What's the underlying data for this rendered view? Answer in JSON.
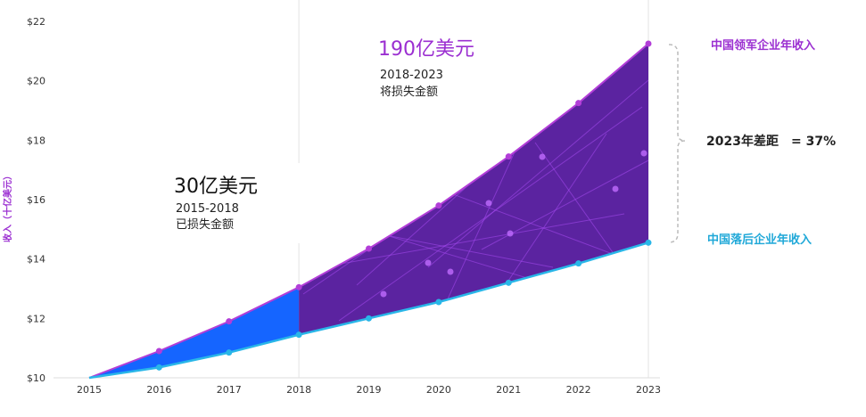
{
  "chart_data": {
    "type": "area",
    "x": [
      "2015",
      "2016",
      "2017",
      "2018",
      "2019",
      "2020",
      "2021",
      "2022",
      "2023"
    ],
    "series": [
      {
        "name": "中国领军企业年收入",
        "values": [
          10.0,
          10.9,
          11.9,
          13.05,
          14.35,
          15.8,
          17.45,
          19.25,
          21.25
        ],
        "color": "#b23ed8"
      },
      {
        "name": "中国落后企业年收入",
        "values": [
          10.0,
          10.35,
          10.85,
          11.45,
          12.0,
          12.55,
          13.2,
          13.85,
          14.55
        ],
        "color": "#29b6e8"
      }
    ],
    "y_ticks": [
      "$10",
      "$12",
      "$14",
      "$16",
      "$18",
      "$20",
      "$22"
    ],
    "ylabel": "收入（十亿美元）",
    "ylim": [
      10,
      22
    ],
    "grid": false,
    "fill_colors": {
      "early": "#1565ff",
      "late": "#5b23a0"
    },
    "annotations": {
      "early": {
        "amount": "30亿美元",
        "period": "2015-2018",
        "desc": "已损失金额"
      },
      "late": {
        "amount": "190亿美元",
        "period": "2018-2023",
        "desc": "将损失金额",
        "amount_color": "#9b2fd1"
      },
      "gap": {
        "label": "2023年差距",
        "value": "= 37%"
      }
    }
  }
}
